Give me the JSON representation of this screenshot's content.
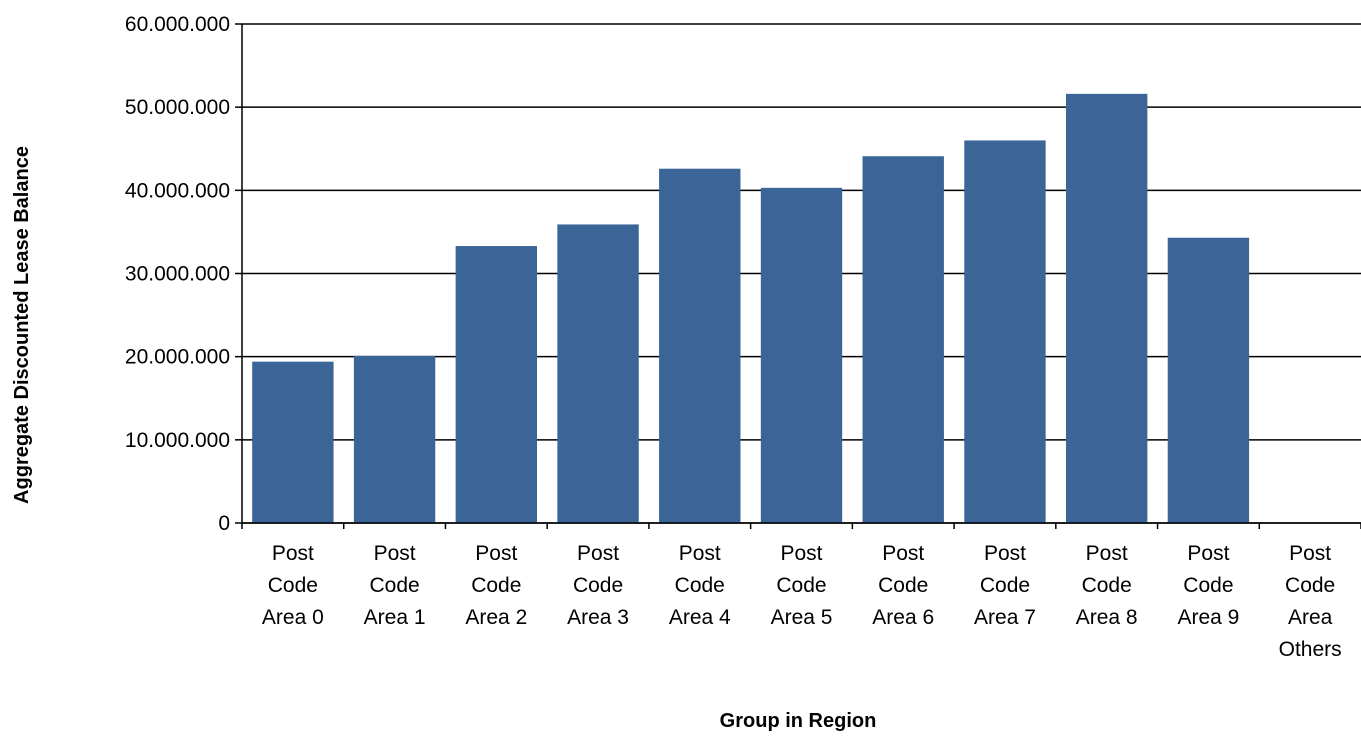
{
  "chart_data": {
    "type": "bar",
    "title": "",
    "xlabel": "Group in Region",
    "ylabel": "Aggregate Discounted Lease Balance",
    "categories": [
      [
        "Post",
        "Code",
        "Area 0"
      ],
      [
        "Post",
        "Code",
        "Area 1"
      ],
      [
        "Post",
        "Code",
        "Area 2"
      ],
      [
        "Post",
        "Code",
        "Area 3"
      ],
      [
        "Post",
        "Code",
        "Area 4"
      ],
      [
        "Post",
        "Code",
        "Area 5"
      ],
      [
        "Post",
        "Code",
        "Area 6"
      ],
      [
        "Post",
        "Code",
        "Area 7"
      ],
      [
        "Post",
        "Code",
        "Area 8"
      ],
      [
        "Post",
        "Code",
        "Area 9"
      ],
      [
        "Post",
        "Code",
        "Area",
        "Others"
      ]
    ],
    "values": [
      19400000,
      20100000,
      33300000,
      35900000,
      42600000,
      40300000,
      44100000,
      46000000,
      51600000,
      34300000,
      0
    ],
    "ylim": [
      0,
      60000000
    ],
    "yticks": [
      0,
      10000000,
      20000000,
      30000000,
      40000000,
      50000000,
      60000000
    ],
    "ytick_labels": [
      "0",
      "10.000.000",
      "20.000.000",
      "30.000.000",
      "40.000.000",
      "50.000.000",
      "60.000.000"
    ],
    "grid": "horizontal",
    "legend": "none",
    "colors": {
      "bar": "#3a6596",
      "grid": "#000000",
      "text": "#000000"
    }
  }
}
